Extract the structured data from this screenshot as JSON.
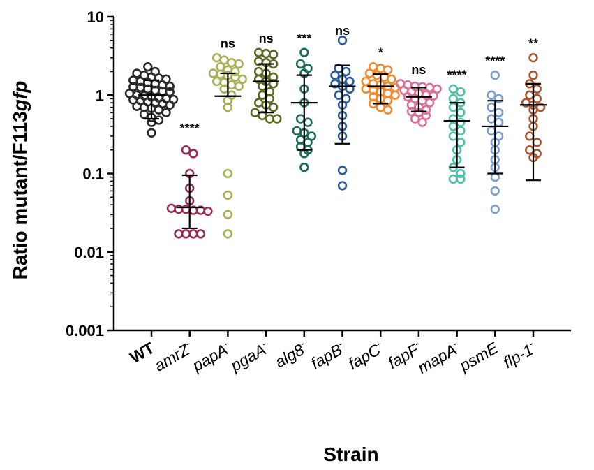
{
  "chart_data": {
    "type": "scatter",
    "ylabel_main": "Ratio mutant/F113",
    "ylabel_italic": "gfp",
    "xlabel": "Strain",
    "yscale": "log",
    "ylim": [
      0.001,
      10
    ],
    "ytick_values": [
      0.001,
      0.01,
      0.1,
      1,
      10
    ],
    "ytick_labels": [
      "0.001",
      "0.01",
      "0.1",
      "1",
      "10"
    ],
    "categories": [
      {
        "label": "WT",
        "sup": "",
        "color": "#2b2b2b",
        "significance": "",
        "median": 1.0,
        "err_low": 0.5,
        "err_high": 1.55,
        "values": [
          2.3,
          2.0,
          1.9,
          1.8,
          1.7,
          1.65,
          1.6,
          1.55,
          1.5,
          1.45,
          1.4,
          1.35,
          1.3,
          1.25,
          1.2,
          1.15,
          1.1,
          1.05,
          1.0,
          0.98,
          0.95,
          0.92,
          0.9,
          0.87,
          0.85,
          0.82,
          0.8,
          0.78,
          0.75,
          0.72,
          0.7,
          0.68,
          0.65,
          0.6,
          0.57,
          0.52,
          0.48,
          0.45,
          0.33,
          1.12,
          1.28,
          0.88
        ]
      },
      {
        "label": "amrZ",
        "sup": "-",
        "color": "#9b2b57",
        "significance": "****",
        "median": 0.037,
        "err_low": 0.02,
        "err_high": 0.095,
        "values": [
          0.2,
          0.18,
          0.1,
          0.065,
          0.045,
          0.036,
          0.035,
          0.035,
          0.034,
          0.034,
          0.033,
          0.017,
          0.017,
          0.017,
          0.017
        ]
      },
      {
        "label": "papA",
        "sup": "-",
        "color": "#a8b05a",
        "significance": "ns",
        "median": 0.97,
        "err_low": 0.97,
        "err_high": 1.9,
        "values": [
          3.0,
          2.8,
          2.6,
          2.5,
          2.3,
          2.1,
          2.0,
          1.9,
          1.85,
          1.8,
          1.7,
          1.6,
          1.5,
          1.45,
          1.35,
          1.3,
          1.2,
          1.0,
          0.85,
          0.7,
          0.1,
          0.053,
          0.03,
          0.017
        ]
      },
      {
        "label": "pgaA",
        "sup": "-",
        "color": "#5a6b23",
        "significance": "ns",
        "median": 1.5,
        "err_low": 0.6,
        "err_high": 2.5,
        "values": [
          3.5,
          3.4,
          3.3,
          2.7,
          2.6,
          2.5,
          2.0,
          1.9,
          1.7,
          1.6,
          1.5,
          1.4,
          1.3,
          1.1,
          1.0,
          0.9,
          0.8,
          0.75,
          0.7,
          0.6,
          0.55,
          0.5,
          0.5
        ]
      },
      {
        "label": "alg8",
        "sup": "-",
        "color": "#1a6b5a",
        "significance": "***",
        "median": 0.8,
        "err_low": 0.2,
        "err_high": 1.8,
        "values": [
          3.5,
          2.5,
          2.2,
          1.9,
          1.2,
          0.8,
          0.5,
          0.45,
          0.35,
          0.33,
          0.3,
          0.27,
          0.25,
          0.22,
          0.2,
          0.18,
          0.12
        ]
      },
      {
        "label": "fapB",
        "sup": "-",
        "color": "#2f5b96",
        "significance": "ns",
        "median": 1.3,
        "err_low": 0.24,
        "err_high": 2.4,
        "values": [
          5.0,
          2.2,
          2.0,
          1.8,
          1.6,
          1.5,
          1.4,
          1.3,
          1.2,
          1.0,
          0.9,
          0.75,
          0.55,
          0.4,
          0.3,
          0.11,
          0.07
        ]
      },
      {
        "label": "fapC",
        "sup": "-",
        "color": "#f08c30",
        "significance": "*",
        "median": 1.3,
        "err_low": 0.78,
        "err_high": 1.85,
        "values": [
          2.3,
          2.2,
          2.1,
          1.9,
          1.8,
          1.7,
          1.6,
          1.5,
          1.4,
          1.35,
          1.3,
          1.25,
          1.2,
          1.15,
          1.1,
          1.05,
          1.0,
          0.95,
          0.9,
          0.85,
          0.78,
          0.7,
          0.65
        ]
      },
      {
        "label": "fapF",
        "sup": "-",
        "color": "#d9709a",
        "significance": "ns",
        "median": 0.95,
        "err_low": 0.62,
        "err_high": 1.25,
        "values": [
          1.4,
          1.35,
          1.3,
          1.28,
          1.25,
          1.2,
          1.15,
          1.1,
          1.05,
          1.0,
          0.98,
          0.95,
          0.9,
          0.85,
          0.8,
          0.75,
          0.7,
          0.65,
          0.62,
          0.6,
          0.55,
          0.5,
          0.45
        ]
      },
      {
        "label": "mapA",
        "sup": "-",
        "color": "#4fc1ab",
        "significance": "****",
        "median": 0.47,
        "err_low": 0.12,
        "err_high": 0.8,
        "values": [
          1.2,
          1.1,
          0.9,
          0.8,
          0.7,
          0.6,
          0.5,
          0.45,
          0.4,
          0.35,
          0.3,
          0.25,
          0.2,
          0.15,
          0.12,
          0.1,
          0.085,
          0.085
        ]
      },
      {
        "label": "psmE",
        "sup": "",
        "color": "#7d9ed0",
        "significance": "****",
        "median": 0.4,
        "err_low": 0.1,
        "err_high": 0.85,
        "values": [
          1.8,
          1.0,
          0.9,
          0.7,
          0.6,
          0.5,
          0.45,
          0.35,
          0.3,
          0.25,
          0.2,
          0.15,
          0.12,
          0.09,
          0.06,
          0.035
        ]
      },
      {
        "label": "flp-1",
        "sup": "-",
        "color": "#a85530",
        "significance": "**",
        "median": 0.75,
        "err_low": 0.082,
        "err_high": 1.4,
        "values": [
          3.0,
          1.8,
          1.4,
          1.2,
          1.0,
          0.9,
          0.8,
          0.75,
          0.7,
          0.65,
          0.5,
          0.4,
          0.3,
          0.25,
          0.2,
          0.18,
          0.16
        ]
      }
    ]
  }
}
